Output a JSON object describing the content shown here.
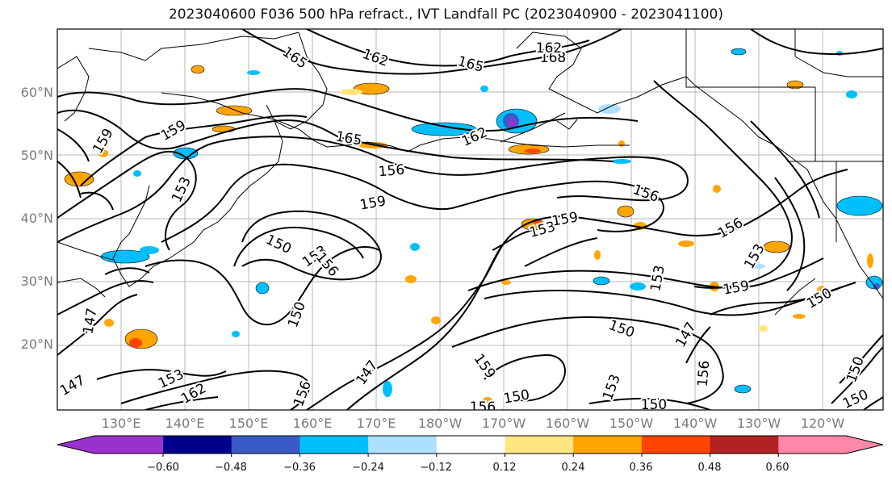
{
  "title": "2023040600 F036 500 hPa refract., IVT Landfall PC (2023040900 - 2023041100)",
  "axes": {
    "lat_labels": [
      "60°N",
      "50°N",
      "40°N",
      "30°N",
      "20°N"
    ],
    "lon_labels": [
      "130°E",
      "140°E",
      "150°E",
      "160°E",
      "170°E",
      "180°W",
      "170°W",
      "160°W",
      "150°W",
      "140°W",
      "130°W",
      "120°W"
    ]
  },
  "contour_labels": [
    "165",
    "162",
    "165",
    "168",
    "162",
    "159",
    "165",
    "162",
    "159",
    "156",
    "153",
    "159",
    "153",
    "156",
    "150",
    "153",
    "156",
    "153",
    "159",
    "156",
    "153",
    "159",
    "147",
    "150",
    "150",
    "147",
    "150",
    "147",
    "156",
    "147",
    "153",
    "162",
    "156",
    "159",
    "153",
    "150",
    "156",
    "150",
    "150",
    "150"
  ],
  "colorbar": {
    "colors": [
      "#9932CC",
      "#00008B",
      "#3A5BC7",
      "#00BFFF",
      "#ADDFFF",
      "#FFFFFF",
      "#FFE680",
      "#FFA500",
      "#FF4500",
      "#B22222",
      "#FF88AA"
    ],
    "tick_labels": [
      "−0.60",
      "−0.48",
      "−0.36",
      "−0.24",
      "−0.12",
      "0.12",
      "0.24",
      "0.36",
      "0.48",
      "0.60"
    ]
  }
}
